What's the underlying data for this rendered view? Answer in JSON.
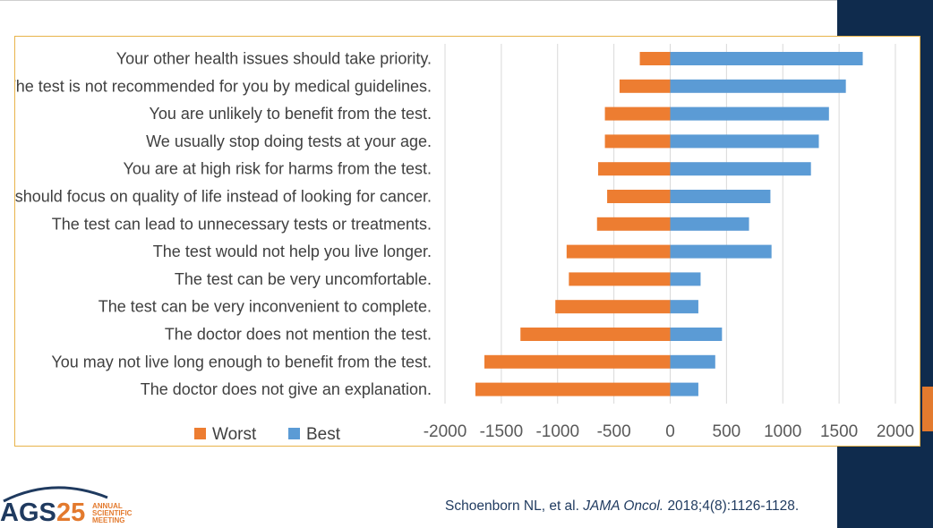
{
  "chart_data": {
    "type": "bar",
    "orientation": "horizontal",
    "categories": [
      "Your other health issues should take priority.",
      "The test is not recommended for you by medical guidelines.",
      "You are unlikely to benefit from the test.",
      "We usually stop doing tests at your age.",
      "You are at high risk for harms from the test.",
      "We should focus on quality of life instead of looking for cancer.",
      "The  test can lead to unnecessary tests or treatments.",
      "The test would not help you live longer.",
      "The test can be very uncomfortable.",
      "The  test can be very inconvenient to complete.",
      "The doctor does not mention the test.",
      "You may not live long enough to benefit from the test.",
      "The doctor does not give an explanation."
    ],
    "series": [
      {
        "name": "Worst",
        "color": "#ed7d31",
        "values": [
          -270,
          -450,
          -580,
          -580,
          -640,
          -560,
          -650,
          -920,
          -900,
          -1020,
          -1330,
          -1650,
          -1730
        ]
      },
      {
        "name": "Best",
        "color": "#5b9bd5",
        "values": [
          1710,
          1560,
          1410,
          1320,
          1250,
          890,
          700,
          900,
          270,
          250,
          460,
          400,
          250
        ]
      }
    ],
    "xlim": [
      -2000,
      2000
    ],
    "xticks": [
      "-2000",
      "-1500",
      "-1000",
      "-500",
      "0",
      "500",
      "1000",
      "1500",
      "2000"
    ],
    "grid": true,
    "legend_position": "bottom-left",
    "title": "",
    "xlabel": "",
    "ylabel": ""
  },
  "footer": {
    "logo": {
      "letters_ags": "AGS",
      "number": "25",
      "line1": "ANNUAL",
      "line2": "SCIENTIFIC",
      "line3": "MEETING"
    },
    "citation": {
      "authors": "Schoenborn NL, et al.",
      "journal": "JAMA Oncol.",
      "details": "2018;4(8):1126-1128."
    }
  },
  "colors": {
    "navy": "#0f2b4d",
    "orange": "#e37a2e",
    "frame": "#e8b34a"
  }
}
